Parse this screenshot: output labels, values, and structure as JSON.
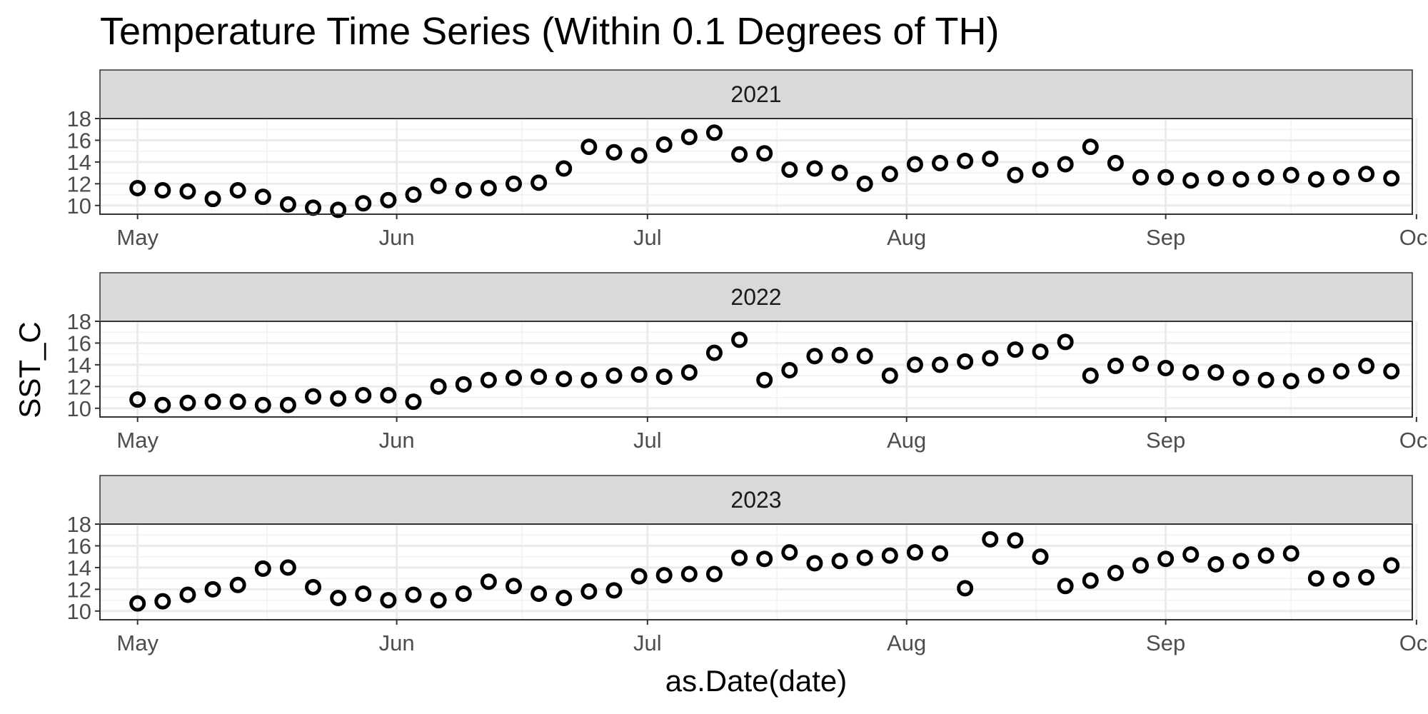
{
  "chart_data": {
    "type": "scatter",
    "title": "Temperature Time Series (Within 0.1 Degrees of TH)",
    "xlabel": "as.Date(date)",
    "ylabel": "SST_C",
    "x_ticks": [
      "May",
      "Jun",
      "Jul",
      "Aug",
      "Sep",
      "Oct"
    ],
    "y_ticks": [
      10,
      12,
      14,
      16,
      18
    ],
    "ylim": [
      9.2,
      18
    ],
    "xlim_days_from_may1": [
      -4.5,
      152.5
    ],
    "grid": true,
    "marker": "open-circle",
    "series": [
      {
        "name": "2021",
        "points": [
          [
            "2021-05-01",
            11.6
          ],
          [
            "2021-05-04",
            11.4
          ],
          [
            "2021-05-07",
            11.3
          ],
          [
            "2021-05-10",
            10.6
          ],
          [
            "2021-05-13",
            11.4
          ],
          [
            "2021-05-16",
            10.8
          ],
          [
            "2021-05-19",
            10.1
          ],
          [
            "2021-05-22",
            9.8
          ],
          [
            "2021-05-25",
            9.6
          ],
          [
            "2021-05-28",
            10.2
          ],
          [
            "2021-05-31",
            10.5
          ],
          [
            "2021-06-03",
            11.0
          ],
          [
            "2021-06-06",
            11.8
          ],
          [
            "2021-06-09",
            11.4
          ],
          [
            "2021-06-12",
            11.6
          ],
          [
            "2021-06-15",
            12.0
          ],
          [
            "2021-06-18",
            12.1
          ],
          [
            "2021-06-21",
            13.4
          ],
          [
            "2021-06-24",
            15.4
          ],
          [
            "2021-06-27",
            14.9
          ],
          [
            "2021-06-30",
            14.6
          ],
          [
            "2021-07-03",
            15.6
          ],
          [
            "2021-07-06",
            16.3
          ],
          [
            "2021-07-09",
            16.7
          ],
          [
            "2021-07-12",
            14.7
          ],
          [
            "2021-07-15",
            14.8
          ],
          [
            "2021-07-18",
            13.3
          ],
          [
            "2021-07-21",
            13.4
          ],
          [
            "2021-07-24",
            13.0
          ],
          [
            "2021-07-27",
            12.0
          ],
          [
            "2021-07-30",
            12.9
          ],
          [
            "2021-08-02",
            13.8
          ],
          [
            "2021-08-05",
            13.9
          ],
          [
            "2021-08-08",
            14.1
          ],
          [
            "2021-08-11",
            14.3
          ],
          [
            "2021-08-14",
            12.8
          ],
          [
            "2021-08-17",
            13.3
          ],
          [
            "2021-08-20",
            13.8
          ],
          [
            "2021-08-23",
            15.4
          ],
          [
            "2021-08-26",
            13.9
          ],
          [
            "2021-08-29",
            12.6
          ],
          [
            "2021-09-01",
            12.6
          ],
          [
            "2021-09-04",
            12.3
          ],
          [
            "2021-09-07",
            12.5
          ],
          [
            "2021-09-10",
            12.4
          ],
          [
            "2021-09-13",
            12.6
          ],
          [
            "2021-09-16",
            12.8
          ],
          [
            "2021-09-19",
            12.4
          ],
          [
            "2021-09-22",
            12.6
          ],
          [
            "2021-09-25",
            12.9
          ],
          [
            "2021-09-28",
            12.5
          ]
        ]
      },
      {
        "name": "2022",
        "points": [
          [
            "2022-05-01",
            10.8
          ],
          [
            "2022-05-04",
            10.3
          ],
          [
            "2022-05-07",
            10.5
          ],
          [
            "2022-05-10",
            10.6
          ],
          [
            "2022-05-13",
            10.6
          ],
          [
            "2022-05-16",
            10.3
          ],
          [
            "2022-05-19",
            10.3
          ],
          [
            "2022-05-22",
            11.1
          ],
          [
            "2022-05-25",
            10.9
          ],
          [
            "2022-05-28",
            11.2
          ],
          [
            "2022-05-31",
            11.2
          ],
          [
            "2022-06-03",
            10.6
          ],
          [
            "2022-06-06",
            12.0
          ],
          [
            "2022-06-09",
            12.2
          ],
          [
            "2022-06-12",
            12.6
          ],
          [
            "2022-06-15",
            12.8
          ],
          [
            "2022-06-18",
            12.9
          ],
          [
            "2022-06-21",
            12.7
          ],
          [
            "2022-06-24",
            12.6
          ],
          [
            "2022-06-27",
            13.0
          ],
          [
            "2022-06-30",
            13.1
          ],
          [
            "2022-07-03",
            12.9
          ],
          [
            "2022-07-06",
            13.3
          ],
          [
            "2022-07-09",
            15.1
          ],
          [
            "2022-07-12",
            16.3
          ],
          [
            "2022-07-15",
            12.6
          ],
          [
            "2022-07-18",
            13.5
          ],
          [
            "2022-07-21",
            14.8
          ],
          [
            "2022-07-24",
            14.9
          ],
          [
            "2022-07-27",
            14.8
          ],
          [
            "2022-07-30",
            13.0
          ],
          [
            "2022-08-02",
            14.0
          ],
          [
            "2022-08-05",
            14.0
          ],
          [
            "2022-08-08",
            14.3
          ],
          [
            "2022-08-11",
            14.6
          ],
          [
            "2022-08-14",
            15.4
          ],
          [
            "2022-08-17",
            15.2
          ],
          [
            "2022-08-20",
            16.1
          ],
          [
            "2022-08-23",
            13.0
          ],
          [
            "2022-08-26",
            13.9
          ],
          [
            "2022-08-29",
            14.1
          ],
          [
            "2022-09-01",
            13.7
          ],
          [
            "2022-09-04",
            13.3
          ],
          [
            "2022-09-07",
            13.3
          ],
          [
            "2022-09-10",
            12.8
          ],
          [
            "2022-09-13",
            12.6
          ],
          [
            "2022-09-16",
            12.5
          ],
          [
            "2022-09-19",
            13.0
          ],
          [
            "2022-09-22",
            13.4
          ],
          [
            "2022-09-25",
            13.9
          ],
          [
            "2022-09-28",
            13.4
          ]
        ]
      },
      {
        "name": "2023",
        "points": [
          [
            "2023-05-01",
            10.7
          ],
          [
            "2023-05-04",
            10.9
          ],
          [
            "2023-05-07",
            11.5
          ],
          [
            "2023-05-10",
            12.0
          ],
          [
            "2023-05-13",
            12.4
          ],
          [
            "2023-05-16",
            13.9
          ],
          [
            "2023-05-19",
            14.0
          ],
          [
            "2023-05-22",
            12.2
          ],
          [
            "2023-05-25",
            11.2
          ],
          [
            "2023-05-28",
            11.6
          ],
          [
            "2023-05-31",
            11.0
          ],
          [
            "2023-06-03",
            11.5
          ],
          [
            "2023-06-06",
            11.0
          ],
          [
            "2023-06-09",
            11.6
          ],
          [
            "2023-06-12",
            12.7
          ],
          [
            "2023-06-15",
            12.3
          ],
          [
            "2023-06-18",
            11.6
          ],
          [
            "2023-06-21",
            11.2
          ],
          [
            "2023-06-24",
            11.8
          ],
          [
            "2023-06-27",
            11.9
          ],
          [
            "2023-06-30",
            13.2
          ],
          [
            "2023-07-03",
            13.3
          ],
          [
            "2023-07-06",
            13.4
          ],
          [
            "2023-07-09",
            13.4
          ],
          [
            "2023-07-12",
            14.9
          ],
          [
            "2023-07-15",
            14.8
          ],
          [
            "2023-07-18",
            15.4
          ],
          [
            "2023-07-21",
            14.4
          ],
          [
            "2023-07-24",
            14.6
          ],
          [
            "2023-07-27",
            14.9
          ],
          [
            "2023-07-30",
            15.1
          ],
          [
            "2023-08-02",
            15.4
          ],
          [
            "2023-08-05",
            15.3
          ],
          [
            "2023-08-08",
            12.1
          ],
          [
            "2023-08-11",
            16.6
          ],
          [
            "2023-08-14",
            16.5
          ],
          [
            "2023-08-17",
            15.0
          ],
          [
            "2023-08-20",
            12.3
          ],
          [
            "2023-08-23",
            12.8
          ],
          [
            "2023-08-26",
            13.5
          ],
          [
            "2023-08-29",
            14.2
          ],
          [
            "2023-09-01",
            14.8
          ],
          [
            "2023-09-04",
            15.2
          ],
          [
            "2023-09-07",
            14.3
          ],
          [
            "2023-09-10",
            14.6
          ],
          [
            "2023-09-13",
            15.1
          ],
          [
            "2023-09-16",
            15.3
          ],
          [
            "2023-09-19",
            13.0
          ],
          [
            "2023-09-22",
            12.9
          ],
          [
            "2023-09-25",
            13.1
          ],
          [
            "2023-09-28",
            14.2
          ]
        ]
      }
    ]
  }
}
